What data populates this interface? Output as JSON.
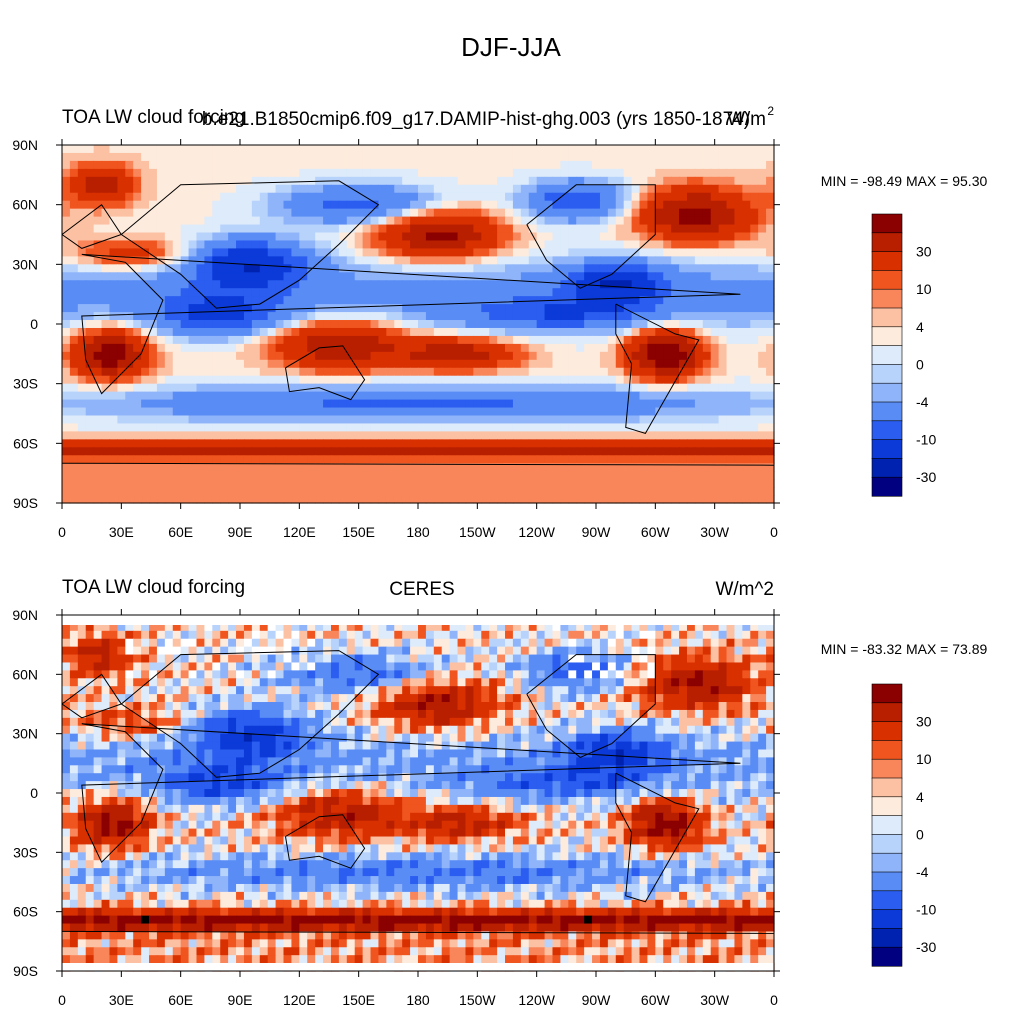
{
  "figure_title": "DJF-JJA",
  "chart_data": [
    {
      "type": "heatmap",
      "left_title": "TOA LW cloud forcing",
      "center_title": "b.e21.B1850cmip6.f09_g17.DAMIP-hist-ghg.003 (yrs 1850-1874)",
      "units": "W/m",
      "units_superscript": "2",
      "min_label": "-98.49",
      "max_label": "95.30",
      "min_max_text": "MIN = -98.49 MAX =  95.30",
      "xlim": [
        0,
        360
      ],
      "ylim": [
        -90,
        90
      ],
      "x_tick_labels": [
        "0",
        "30E",
        "60E",
        "90E",
        "120E",
        "150E",
        "180",
        "150W",
        "120W",
        "90W",
        "60W",
        "30W",
        "0"
      ],
      "y_tick_labels": [
        "90S",
        "60S",
        "30S",
        "0",
        "30N",
        "60N",
        "90N"
      ],
      "colorbar_labels": [
        "30",
        "10",
        "4",
        "0",
        "-4",
        "-10",
        "-30"
      ],
      "has_missing_data": false
    },
    {
      "type": "heatmap",
      "left_title": "TOA LW cloud forcing",
      "center_title": "CERES",
      "units": "W/m^2",
      "units_superscript": "",
      "min_label": "-83.32",
      "max_label": "73.89",
      "min_max_text": "MIN = -83.32 MAX =  73.89",
      "xlim": [
        0,
        360
      ],
      "ylim": [
        -90,
        90
      ],
      "x_tick_labels": [
        "0",
        "30E",
        "60E",
        "90E",
        "120E",
        "150E",
        "180",
        "150W",
        "120W",
        "90W",
        "60W",
        "30W",
        "0"
      ],
      "y_tick_labels": [
        "90S",
        "60S",
        "30S",
        "0",
        "30N",
        "60N",
        "90N"
      ],
      "colorbar_labels": [
        "30",
        "10",
        "4",
        "0",
        "-4",
        "-10",
        "-30"
      ],
      "has_missing_data": true
    }
  ],
  "colorbar_colors": [
    "#8b0000",
    "#b81e00",
    "#d93000",
    "#f0551f",
    "#f9865a",
    "#fcc0a2",
    "#fdebdd",
    "#ddebfb",
    "#b8d3fb",
    "#8fb4fa",
    "#5a8cf5",
    "#2a5df0",
    "#0b3ad8",
    "#0022b0",
    "#000080"
  ]
}
